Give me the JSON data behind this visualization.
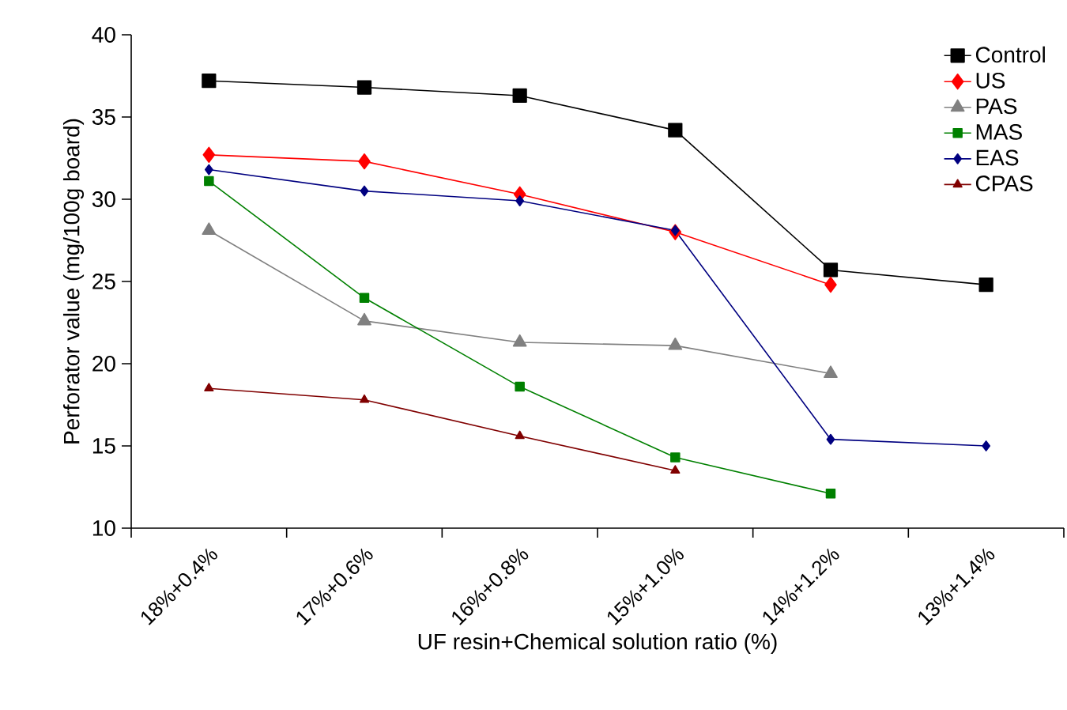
{
  "chart_data": {
    "type": "line",
    "xlabel": "UF resin+Chemical solution ratio (%)",
    "ylabel": "Perforator value (mg/100g board)",
    "categories": [
      "18%+0.4%",
      "17%+0.6%",
      "16%+0.8%",
      "15%+1.0%",
      "14%+1.2%",
      "13%+1.4%"
    ],
    "ylim": [
      10,
      40
    ],
    "yticks": [
      10,
      15,
      20,
      25,
      30,
      35,
      40
    ],
    "grid": false,
    "legend": "top right",
    "line_style": "solid",
    "series": [
      {
        "name": "Control",
        "color": "#000000",
        "marker": "square",
        "values": [
          37.2,
          36.8,
          36.3,
          34.2,
          25.7,
          24.8
        ]
      },
      {
        "name": "US",
        "color": "#ff0000",
        "marker": "diamond",
        "values": [
          32.7,
          32.3,
          30.3,
          28.0,
          24.8,
          null
        ]
      },
      {
        "name": "PAS",
        "color": "#808080",
        "marker": "triangle",
        "values": [
          28.1,
          22.6,
          21.3,
          21.1,
          19.4,
          null
        ]
      },
      {
        "name": "MAS",
        "color": "#008000",
        "marker": "square",
        "values": [
          31.1,
          24.0,
          18.6,
          14.3,
          12.1,
          null
        ]
      },
      {
        "name": "EAS",
        "color": "#000080",
        "marker": "diamond",
        "values": [
          31.8,
          30.5,
          29.9,
          28.1,
          15.4,
          15.0
        ]
      },
      {
        "name": "CPAS",
        "color": "#800000",
        "marker": "triangle",
        "values": [
          18.5,
          17.8,
          15.6,
          13.5,
          null,
          null
        ]
      }
    ]
  }
}
